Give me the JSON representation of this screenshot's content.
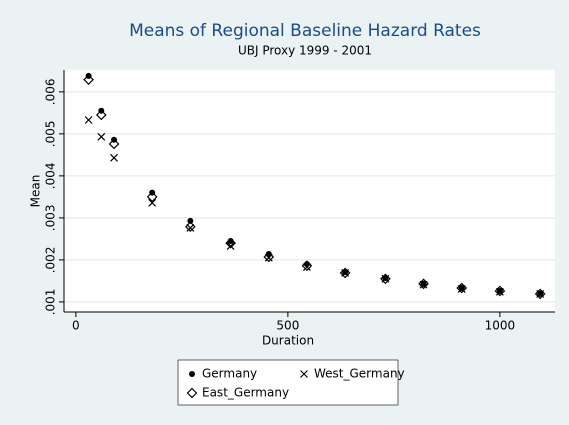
{
  "chart_data": {
    "type": "scatter",
    "title": "Means of Regional Baseline Hazard Rates",
    "subtitle": "UBJ Proxy 1999 - 2001",
    "x_label": "Duration",
    "y_label": "Mean",
    "x": [
      30,
      60,
      90,
      180,
      270,
      365,
      455,
      545,
      635,
      730,
      820,
      910,
      1000,
      1095
    ],
    "series": [
      {
        "name": "Germany",
        "color": "#000000",
        "marker": "circle",
        "values": [
          0.00638,
          0.00555,
          0.00486,
          0.0036,
          0.00293,
          0.00245,
          0.00214,
          0.0019,
          0.00171,
          0.00157,
          0.00143,
          0.00133,
          0.00126,
          0.00119
        ]
      },
      {
        "name": "West_Germany",
        "color": "#000000",
        "marker": "x",
        "values": [
          0.00533,
          0.00493,
          0.00443,
          0.00336,
          0.00276,
          0.00233,
          0.00205,
          0.00183,
          0.00169,
          0.00155,
          0.00141,
          0.00131,
          0.00124,
          0.00119
        ]
      },
      {
        "name": "East_Germany",
        "color": "#000000",
        "marker": "diamond",
        "values": [
          0.00629,
          0.00545,
          0.00476,
          0.0035,
          0.00279,
          0.0024,
          0.00207,
          0.00186,
          0.00169,
          0.00155,
          0.00143,
          0.00133,
          0.00126,
          0.00119
        ]
      }
    ],
    "xlim": [
      -28,
      1130
    ],
    "ylim": [
      0.00076,
      0.00652
    ],
    "xticks": [
      0,
      500,
      1000
    ],
    "yticks": [
      {
        "value": 0.001,
        "label": ".001"
      },
      {
        "value": 0.002,
        "label": ".002"
      },
      {
        "value": 0.003,
        "label": ".003"
      },
      {
        "value": 0.004,
        "label": ".004"
      },
      {
        "value": 0.005,
        "label": ".005"
      },
      {
        "value": 0.006,
        "label": ".006"
      }
    ],
    "grid": true,
    "legend_position": "bottom"
  }
}
